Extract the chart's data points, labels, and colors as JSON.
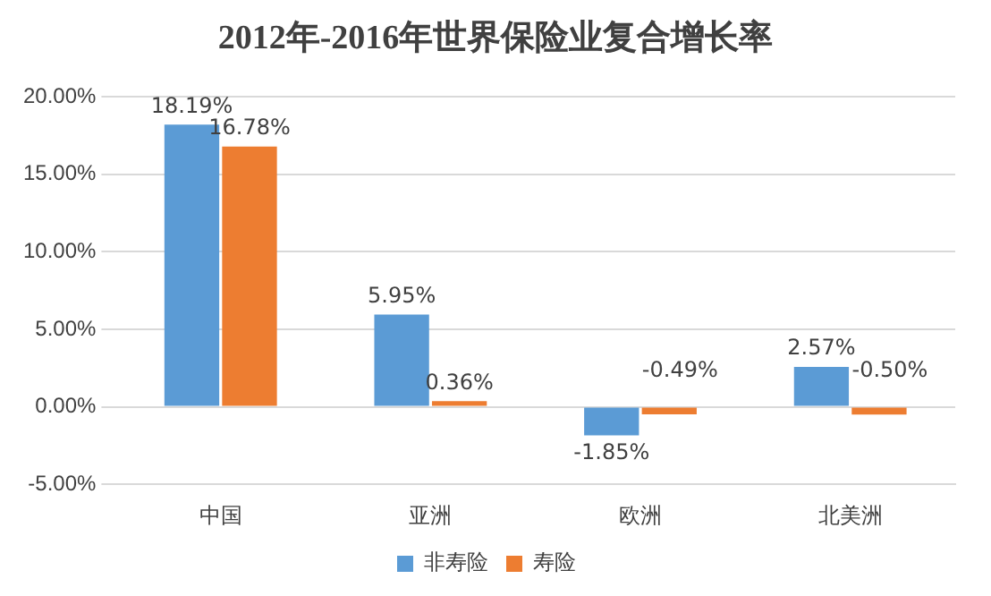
{
  "chart_data": {
    "type": "bar",
    "title": "2012年-2016年世界保险业复合增长率",
    "categories": [
      "中国",
      "亚洲",
      "欧洲",
      "北美洲"
    ],
    "series": [
      {
        "name": "非寿险",
        "color": "#5b9bd5",
        "values": [
          18.19,
          5.95,
          -1.85,
          2.57
        ],
        "value_labels": [
          "18.19%",
          "5.95%",
          "-1.85%",
          "2.57%"
        ]
      },
      {
        "name": "寿险",
        "color": "#ed7d31",
        "values": [
          16.78,
          0.36,
          -0.49,
          -0.5
        ],
        "value_labels": [
          "16.78%",
          "0.36%",
          "-0.49%",
          "-0.50%"
        ]
      }
    ],
    "ylim": [
      -5,
      20
    ],
    "yticks": [
      {
        "value": -5,
        "label": "-5.00%"
      },
      {
        "value": 0,
        "label": "0.00%"
      },
      {
        "value": 5,
        "label": "5.00%"
      },
      {
        "value": 10,
        "label": "10.00%"
      },
      {
        "value": 15,
        "label": "15.00%"
      },
      {
        "value": 20,
        "label": "20.00%"
      }
    ],
    "grid": "y",
    "legend": "bottom"
  }
}
